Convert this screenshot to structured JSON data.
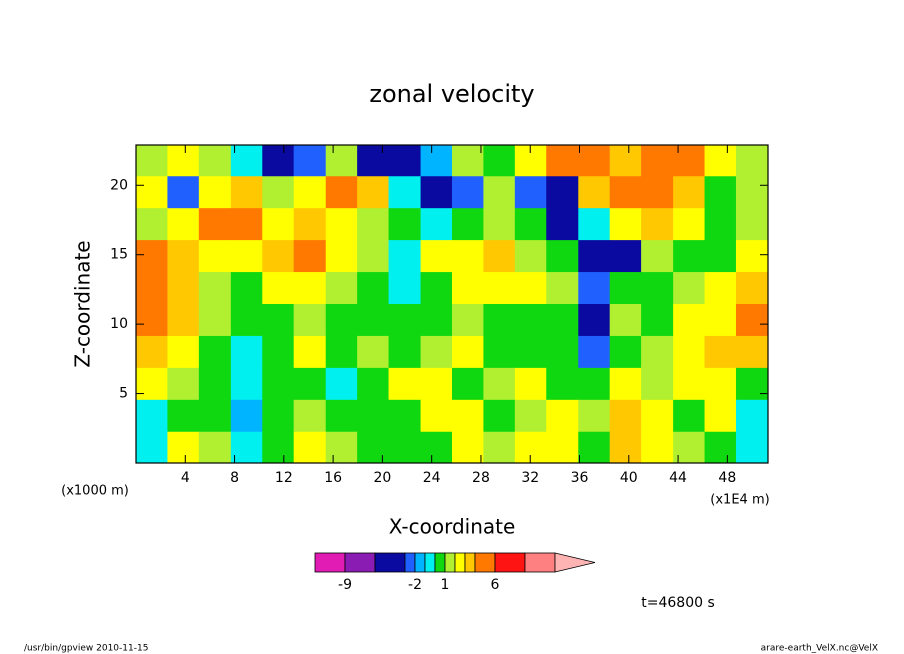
{
  "chart_data": {
    "type": "contour",
    "title": "zonal velocity",
    "xlabel": "X-coordinate",
    "ylabel": "Z-coordinate",
    "xunit": "(x1E4 m)",
    "yunit": "(x1000 m)",
    "annotation": "t=46800 s",
    "footer_left": "/usr/bin/gpview  2010-11-15",
    "footer_right": "arare-earth_VelX.nc@VelX",
    "xlim": [
      0,
      51.3
    ],
    "ylim": [
      0,
      22.9
    ],
    "xticks": [
      4,
      8,
      12,
      16,
      20,
      24,
      28,
      32,
      36,
      40,
      44,
      48
    ],
    "yticks": [
      5,
      10,
      15,
      20
    ],
    "x": [
      1.3,
      3.8,
      6.4,
      9,
      11.5,
      14.1,
      16.7,
      19.2,
      21.8,
      24.4,
      26.9,
      29.5,
      32,
      34.6,
      37.2,
      39.7,
      42.3,
      44.9,
      47.4,
      50
    ],
    "y": [
      21.8,
      19.5,
      17.2,
      14.9,
      12.6,
      10.3,
      8.0,
      5.7,
      3.4,
      1.1
    ],
    "z": [
      [
        1,
        2.5,
        1,
        -1,
        -4,
        -3,
        1,
        -4,
        -4,
        -2,
        1,
        0.5,
        2.5,
        5,
        5,
        3,
        5,
        5,
        2.5,
        1
      ],
      [
        2.5,
        -3,
        2.5,
        3,
        1,
        2.5,
        5,
        3,
        -1,
        -4,
        -3,
        1,
        -3,
        -4,
        3,
        5,
        5,
        3,
        0.5,
        1
      ],
      [
        1,
        2.5,
        5,
        5,
        2.5,
        3,
        2.5,
        1,
        0.5,
        -1,
        0.5,
        1,
        0.5,
        -4,
        -1,
        2.5,
        3,
        2.5,
        0.5,
        1
      ],
      [
        5,
        3,
        2.5,
        2.5,
        3,
        5,
        2.5,
        1,
        -1,
        2.5,
        2.5,
        3,
        1,
        0.5,
        -5,
        -4,
        1,
        0.5,
        0.5,
        2.5
      ],
      [
        5,
        3,
        1,
        0.5,
        2.5,
        2.5,
        1,
        0.5,
        -1,
        0.5,
        2.5,
        2.5,
        2.5,
        1,
        -3,
        0.5,
        0.5,
        1,
        2.5,
        3
      ],
      [
        5,
        3,
        1,
        0.5,
        0.5,
        1,
        0.5,
        0.5,
        0.5,
        0.5,
        1,
        0.5,
        0.5,
        0.5,
        -4,
        1,
        0.5,
        2.5,
        2.5,
        5
      ],
      [
        3,
        2.5,
        0.5,
        -1,
        0.5,
        2.5,
        0.5,
        1,
        0.5,
        1,
        2.5,
        0.5,
        0.5,
        0.5,
        -3,
        0.5,
        1,
        2.5,
        3,
        3
      ],
      [
        2.5,
        1,
        0.5,
        -1,
        0.5,
        0.5,
        -1,
        0.5,
        2.5,
        2.5,
        0.5,
        1,
        2.5,
        0.5,
        0.5,
        2.5,
        1,
        2.5,
        2.5,
        0.5
      ],
      [
        -1,
        0.5,
        0.5,
        -2,
        0.5,
        1,
        0.5,
        0.5,
        0.5,
        2.5,
        2.5,
        0.5,
        1,
        2.5,
        1,
        3,
        2.5,
        0.5,
        2.5,
        -1
      ],
      [
        -1,
        2.5,
        1,
        -1,
        0.5,
        2.5,
        1,
        0.5,
        0.5,
        0.5,
        2.5,
        1,
        2.5,
        2.5,
        0.5,
        3,
        2.5,
        1,
        0.5,
        -1
      ]
    ],
    "levels": [
      -12,
      -9,
      -6,
      -3,
      -2,
      -1,
      0,
      1,
      2,
      3,
      4,
      6,
      9,
      12
    ],
    "colors": [
      "#e01cb4",
      "#8a1cb4",
      "#0a0aa0",
      "#2060ff",
      "#00b4ff",
      "#00f0f0",
      "#10d810",
      "#b0f030",
      "#ffff00",
      "#ffc800",
      "#ff7800",
      "#ff1414",
      "#ff8080",
      "#ffb4b4"
    ],
    "colorbar_ticks": [
      -9,
      -2,
      1,
      6
    ]
  }
}
